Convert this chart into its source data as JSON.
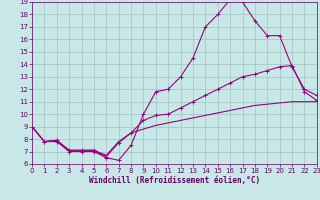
{
  "background_color": "#c8e8e8",
  "grid_color": "#a8c8c8",
  "line_color": "#990080",
  "xlim": [
    0,
    23
  ],
  "ylim": [
    6,
    19
  ],
  "xticks": [
    0,
    1,
    2,
    3,
    4,
    5,
    6,
    7,
    8,
    9,
    10,
    11,
    12,
    13,
    14,
    15,
    16,
    17,
    18,
    19,
    20,
    21,
    22,
    23
  ],
  "yticks": [
    6,
    7,
    8,
    9,
    10,
    11,
    12,
    13,
    14,
    15,
    16,
    17,
    18,
    19
  ],
  "xlabel": "Windchill (Refroidissement éolien,°C)",
  "series1_x": [
    0,
    1,
    2,
    3,
    4,
    5,
    6,
    7,
    8,
    9,
    10,
    11,
    12,
    13,
    14,
    15,
    16,
    17,
    18,
    19,
    20,
    21,
    22,
    23
  ],
  "series1_y": [
    9.0,
    7.8,
    7.8,
    7.0,
    7.0,
    7.0,
    6.5,
    6.3,
    7.5,
    10.0,
    11.8,
    12.0,
    13.0,
    14.5,
    17.0,
    18.0,
    19.2,
    19.0,
    17.5,
    16.3,
    16.3,
    13.8,
    12.0,
    11.5
  ],
  "series2_x": [
    0,
    1,
    2,
    3,
    4,
    5,
    6,
    7,
    8,
    9,
    10,
    11,
    12,
    13,
    14,
    15,
    16,
    17,
    18,
    19,
    20,
    21,
    22,
    23
  ],
  "series2_y": [
    9.0,
    7.8,
    7.9,
    7.1,
    7.1,
    7.1,
    6.6,
    7.7,
    8.5,
    9.5,
    9.9,
    10.0,
    10.5,
    11.0,
    11.5,
    12.0,
    12.5,
    13.0,
    13.2,
    13.5,
    13.8,
    13.9,
    11.8,
    11.1
  ],
  "series3_x": [
    0,
    1,
    2,
    3,
    4,
    5,
    6,
    7,
    8,
    9,
    10,
    11,
    12,
    13,
    14,
    15,
    16,
    17,
    18,
    19,
    20,
    21,
    22,
    23
  ],
  "series3_y": [
    9.0,
    7.8,
    7.9,
    7.1,
    7.1,
    7.1,
    6.7,
    7.8,
    8.5,
    8.8,
    9.1,
    9.3,
    9.5,
    9.7,
    9.9,
    10.1,
    10.3,
    10.5,
    10.7,
    10.8,
    10.9,
    11.0,
    11.0,
    11.0
  ],
  "tick_fontsize": 5.0,
  "xlabel_fontsize": 5.5,
  "tick_color": "#660066",
  "label_color": "#660066"
}
